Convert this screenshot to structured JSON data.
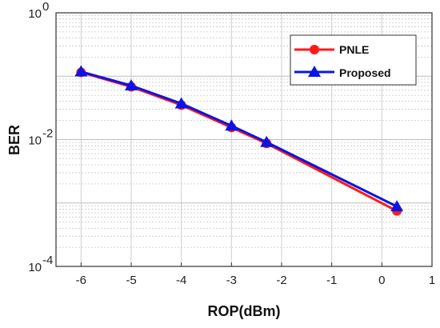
{
  "chart_data": {
    "type": "line",
    "title": "",
    "xlabel": "ROP(dBm)",
    "ylabel": "BER",
    "xlim": [
      -6.5,
      1
    ],
    "ylim_log10": [
      -4,
      0
    ],
    "y_scale": "log",
    "x_ticks": [
      "-6",
      "-5",
      "-4",
      "-3",
      "-2",
      "-1",
      "0",
      "1"
    ],
    "y_ticks": [
      {
        "base": "10",
        "exp": "0"
      },
      {
        "base": "10",
        "exp": "-2"
      },
      {
        "base": "10",
        "exp": "-4"
      }
    ],
    "grid": true,
    "legend_position": "top-right",
    "series": [
      {
        "name": "PNLE",
        "color": "#ff1a1a",
        "marker": "circle",
        "x": [
          -6,
          -5,
          -4,
          -3,
          -2.3,
          0.3
        ],
        "y": [
          0.115,
          0.068,
          0.035,
          0.0155,
          0.0087,
          0.00075
        ]
      },
      {
        "name": "Proposed",
        "color": "#0a14e6",
        "marker": "triangle",
        "x": [
          -6,
          -5,
          -4,
          -3,
          -2.3,
          0.3
        ],
        "y": [
          0.118,
          0.071,
          0.037,
          0.0165,
          0.0091,
          0.00088
        ]
      }
    ]
  }
}
